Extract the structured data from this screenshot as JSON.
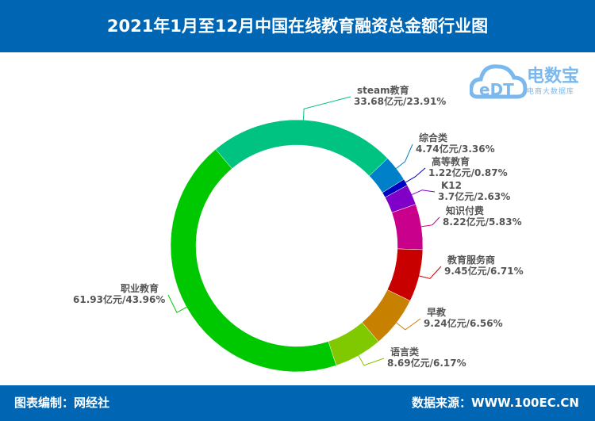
{
  "title": "2021年1月至12月中国在线教育融资总金额行业图",
  "footer": {
    "left": "图表编制：网经社",
    "right": "数据来源：WWW.100EC.CN"
  },
  "logo": {
    "mark": "eDT",
    "name": "电数宝",
    "tagline": "电商大数据库"
  },
  "chart_data": {
    "type": "pie",
    "donut": true,
    "unit": "亿元",
    "categories": [
      "steam教育",
      "综合类",
      "高等教育",
      "K12",
      "知识付费",
      "教育服务商",
      "早教",
      "语言类",
      "职业教育"
    ],
    "values": [
      33.68,
      4.74,
      1.22,
      3.7,
      8.22,
      9.45,
      9.24,
      8.69,
      61.93
    ],
    "percent": [
      23.91,
      3.36,
      0.87,
      2.63,
      5.83,
      6.71,
      6.56,
      6.17,
      43.96
    ],
    "labels": [
      "33.68亿元/23.91%",
      "4.74亿元/3.36%",
      "1.22亿元/0.87%",
      "3.7亿元/2.63%",
      "8.22亿元/5.83%",
      "9.45亿元/6.71%",
      "9.24亿元/6.56%",
      "8.69亿元/6.17%",
      "61.93亿元/43.96%"
    ],
    "colors": [
      "#00c382",
      "#0080c8",
      "#0000c0",
      "#8000c8",
      "#c8008c",
      "#c80000",
      "#c88000",
      "#80c800",
      "#00c800"
    ],
    "legend": "none"
  }
}
